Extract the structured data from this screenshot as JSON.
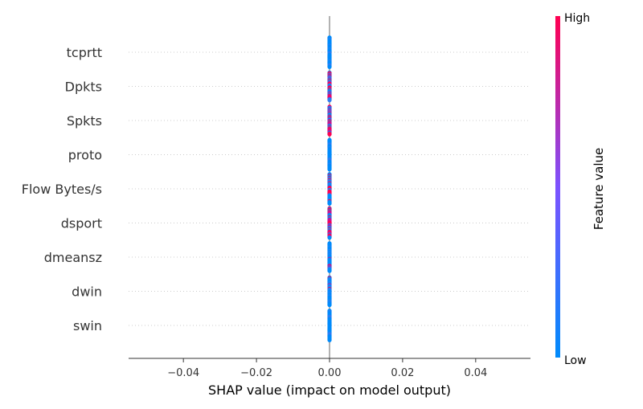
{
  "chart_data": {
    "type": "scatter",
    "subtype": "shap-beeswarm-summary",
    "title": "",
    "xlabel": "SHAP value (impact on model output)",
    "ylabel": "",
    "xlim": [
      -0.055,
      0.055
    ],
    "xticks": [
      -0.04,
      -0.02,
      0.0,
      0.02,
      0.04
    ],
    "xtick_labels": [
      "−0.04",
      "−0.02",
      "0.00",
      "0.02",
      "0.04"
    ],
    "grid": "dotted horizontal row lines",
    "features": [
      "tcprtt",
      "Dpkts",
      "Spkts",
      "proto",
      "Flow Bytes/s",
      "dsport",
      "dmeansz",
      "dwin",
      "swin"
    ],
    "rows": [
      {
        "feature": "tcprtt",
        "x": 0.0,
        "spread": 0.83,
        "high_fraction": 0.0
      },
      {
        "feature": "Dpkts",
        "x": 0.0,
        "spread": 0.78,
        "high_fraction": 0.35
      },
      {
        "feature": "Spkts",
        "x": 0.0,
        "spread": 0.78,
        "high_fraction": 0.55
      },
      {
        "feature": "proto",
        "x": 0.0,
        "spread": 0.83,
        "high_fraction": 0.0
      },
      {
        "feature": "Flow Bytes/s",
        "x": 0.0,
        "spread": 0.83,
        "high_fraction": 0.2
      },
      {
        "feature": "dsport",
        "x": 0.0,
        "spread": 0.83,
        "high_fraction": 0.6
      },
      {
        "feature": "dmeansz",
        "x": 0.0,
        "spread": 0.78,
        "high_fraction": 0.1
      },
      {
        "feature": "dwin",
        "x": 0.0,
        "spread": 0.78,
        "high_fraction": 0.1
      },
      {
        "feature": "swin",
        "x": 0.0,
        "spread": 0.83,
        "high_fraction": 0.0
      }
    ],
    "colorbar": {
      "title": "Feature value",
      "high_label": "High",
      "low_label": "Low",
      "low_color": "#008bfb",
      "mid_color": "#7c52ff",
      "high_color": "#ff0051"
    },
    "colors": {
      "zero_line": "#999999",
      "grid": "#cccccc",
      "axis": "#333333"
    }
  }
}
